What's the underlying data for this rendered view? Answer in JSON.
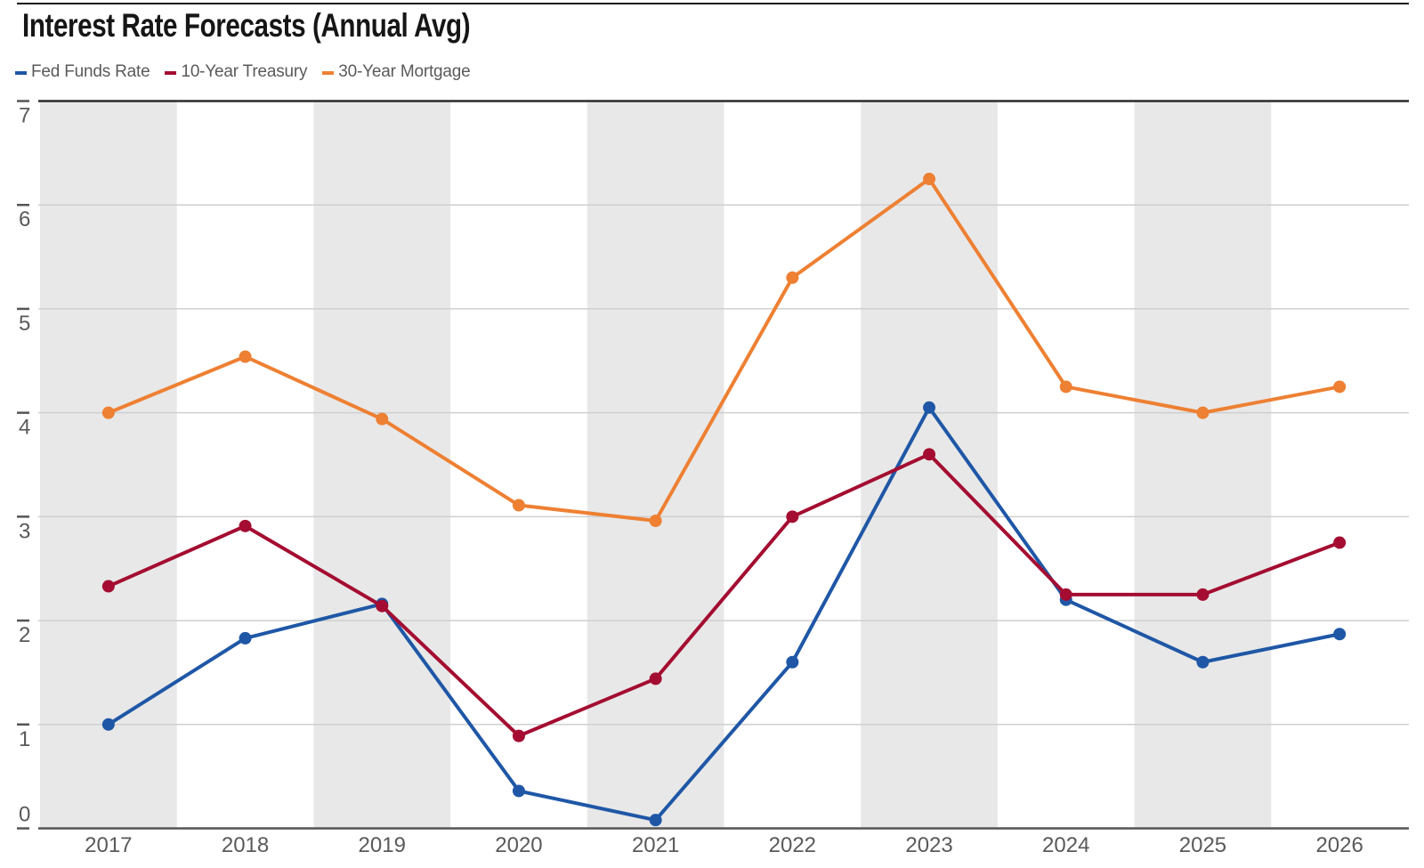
{
  "chart_data": {
    "type": "line",
    "title": "Interest Rate Forecasts (Annual Avg)",
    "xlabel": "",
    "ylabel": "",
    "categories": [
      "2017",
      "2018",
      "2019",
      "2020",
      "2021",
      "2022",
      "2023",
      "2024",
      "2025",
      "2026"
    ],
    "series": [
      {
        "name": "Fed Funds Rate",
        "color": "#1f57a6",
        "values": [
          1.0,
          1.83,
          2.16,
          0.36,
          0.08,
          1.6,
          4.05,
          2.2,
          1.6,
          1.87
        ]
      },
      {
        "name": "10-Year Treasury",
        "color": "#a40d31",
        "values": [
          2.33,
          2.91,
          2.14,
          0.89,
          1.44,
          3.0,
          3.6,
          2.25,
          2.25,
          2.75
        ]
      },
      {
        "name": "30-Year Mortgage",
        "color": "#ee8033",
        "values": [
          4.0,
          4.54,
          3.94,
          3.11,
          2.96,
          5.3,
          6.25,
          4.25,
          4.0,
          4.25
        ]
      }
    ],
    "ylim": [
      0,
      7
    ],
    "yticks": [
      0,
      1,
      2,
      3,
      4,
      5,
      6,
      7
    ],
    "grid": "horizontal",
    "band_shading": "alternate year columns shaded gray starting with 2017",
    "legend_position": "top-left"
  },
  "style": {
    "band_color": "#e8e8e8",
    "gridline_color": "#cfcfcf",
    "axis_top_color": "#2b2b2b",
    "axis_bottom_color": "#555555",
    "tick_color": "#555555",
    "label_color": "#5a5a5a",
    "title_color": "#161616"
  }
}
